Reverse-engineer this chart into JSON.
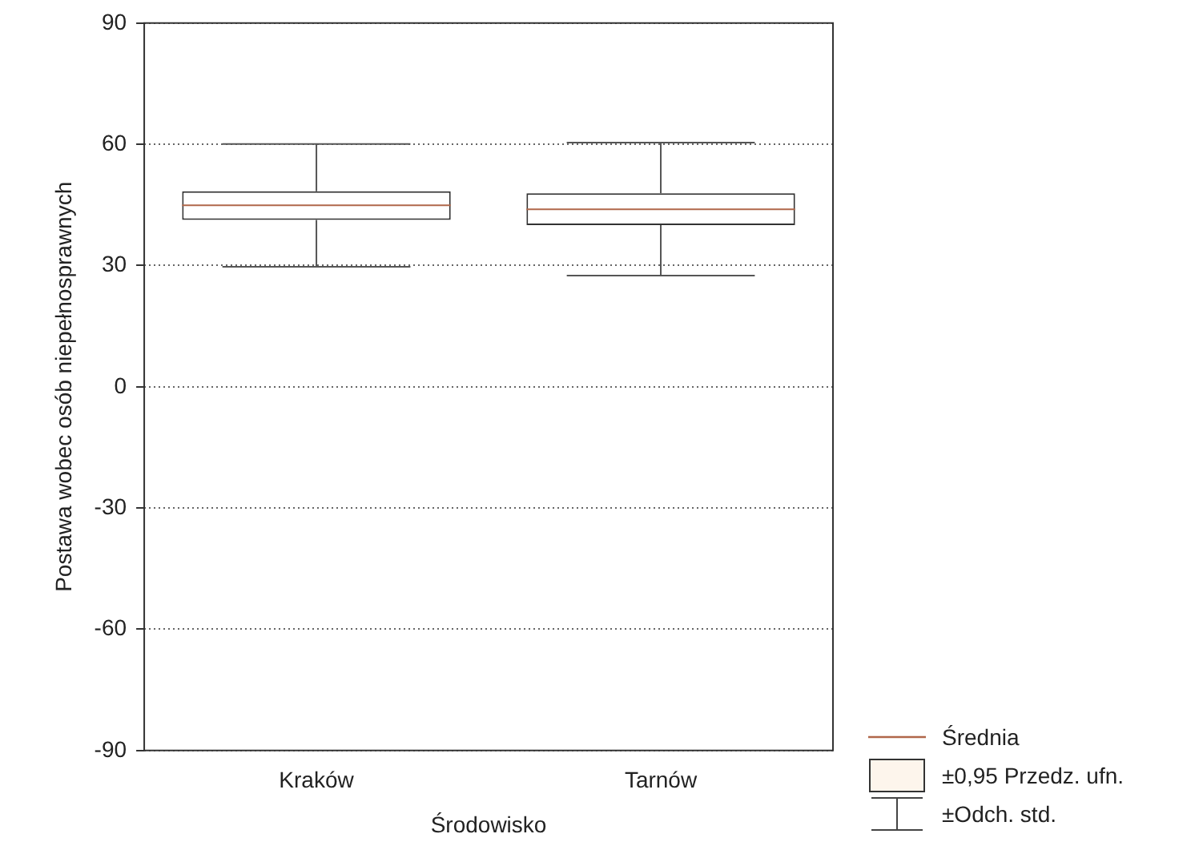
{
  "chart_data": {
    "type": "box",
    "xlabel": "Środowisko",
    "ylabel": "Postawa wobec osób niepełnosprawnych",
    "categories": [
      "Kraków",
      "Tarnów"
    ],
    "series": [
      {
        "color": "#333333",
        "boxes": [
          {
            "low": 29.7,
            "q1": 41.3,
            "median": 44.9,
            "q3": 48.4,
            "high": 60.1
          },
          {
            "low": 27.5,
            "q1": 40.0,
            "median": 43.9,
            "q3": 47.9,
            "high": 60.4
          }
        ]
      }
    ],
    "ylim": [
      -90,
      90
    ],
    "yticks": [
      -90,
      -60,
      -30,
      0,
      30,
      60,
      90
    ],
    "grid": "y",
    "annotations": [
      "Średnia",
      "±0,95 Przedz. ufn.",
      "±Odch. std."
    ]
  }
}
